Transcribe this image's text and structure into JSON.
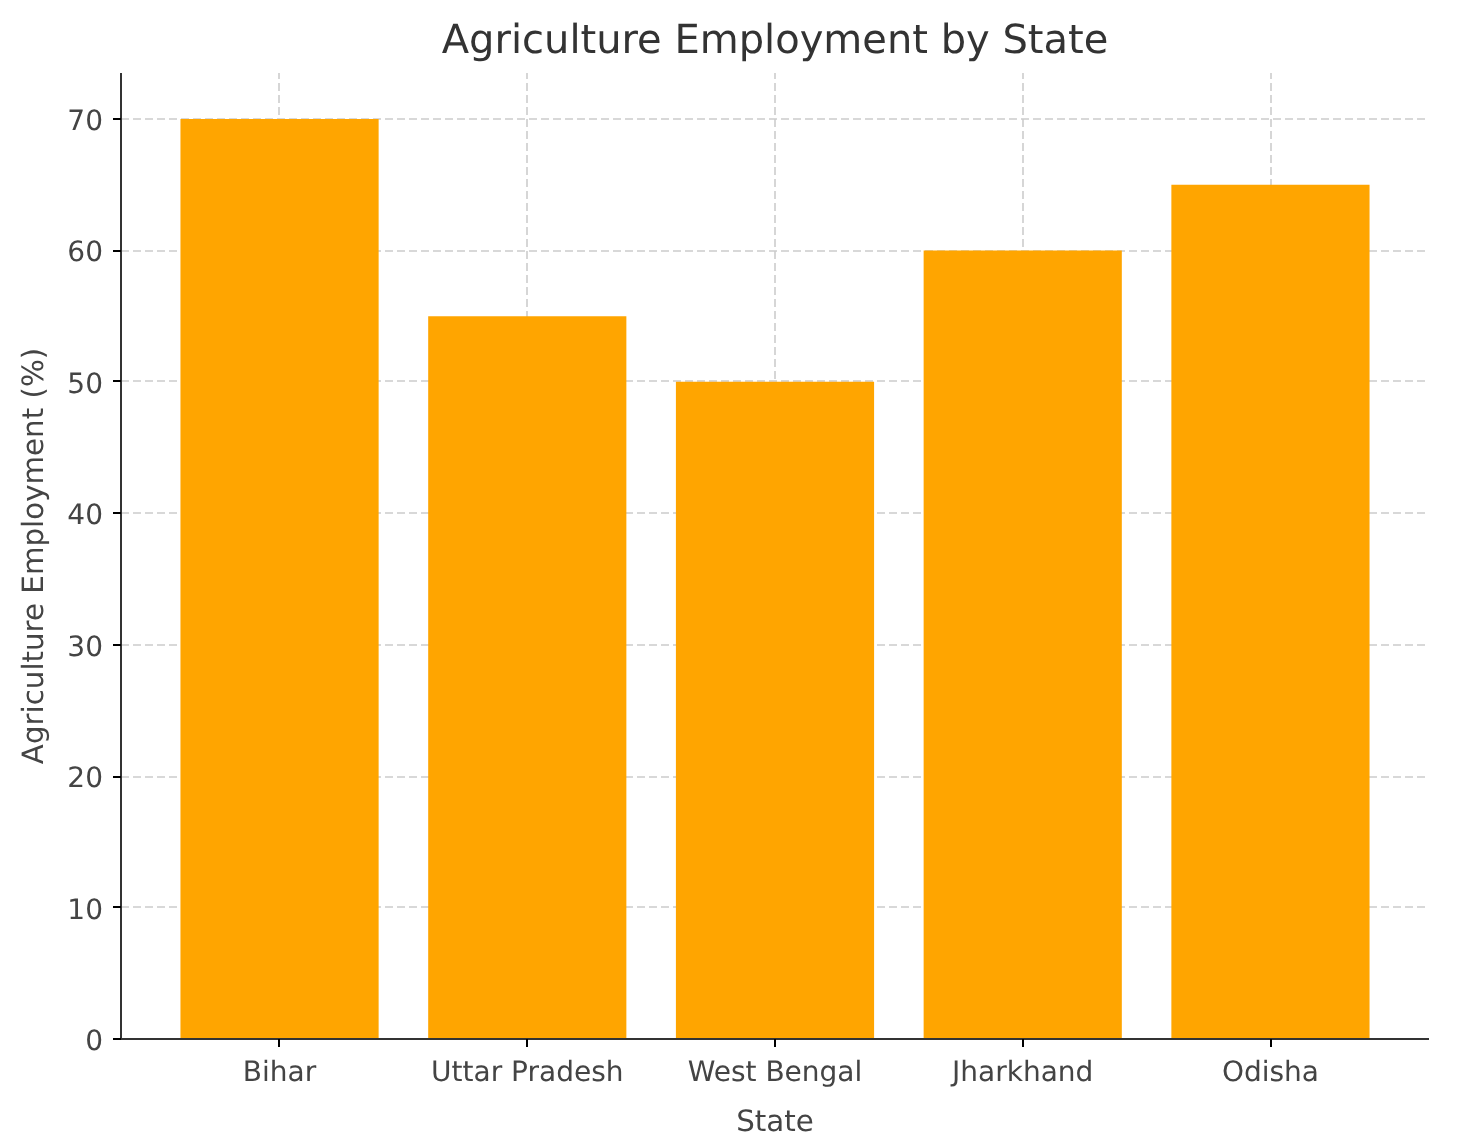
{
  "chart_data": {
    "type": "bar",
    "title": "Agriculture Employment by State",
    "xlabel": "State",
    "ylabel": "Agriculture Employment (%)",
    "categories": [
      "Bihar",
      "Uttar Pradesh",
      "West Bengal",
      "Jharkhand",
      "Odisha"
    ],
    "values": [
      70,
      55,
      50,
      60,
      65
    ],
    "color": "#ffa500",
    "ylim": [
      0,
      73.5
    ],
    "yticks": [
      0,
      10,
      20,
      30,
      40,
      50,
      60,
      70
    ],
    "grid": true
  }
}
